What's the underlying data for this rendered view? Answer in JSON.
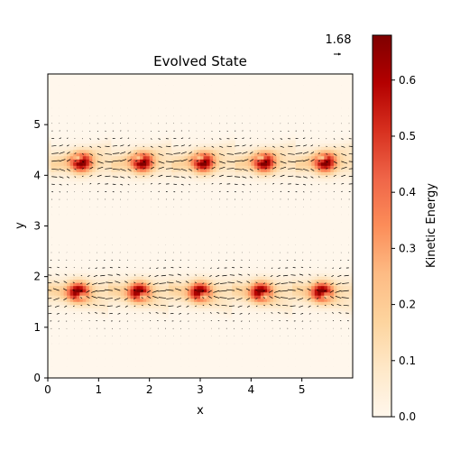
{
  "chart_data": {
    "type": "heatmap",
    "title": "Evolved State",
    "xlabel": "x",
    "ylabel": "y",
    "xlim": [
      0,
      6
    ],
    "ylim": [
      0,
      6
    ],
    "xticks": [
      0,
      1,
      2,
      3,
      4,
      5
    ],
    "yticks": [
      0,
      1,
      2,
      3,
      4,
      5
    ],
    "colorbar": {
      "label": "Kinetic Energy",
      "range": [
        0.0,
        0.68
      ],
      "ticks": [
        "0.0",
        "0.1",
        "0.2",
        "0.3",
        "0.4",
        "0.5",
        "0.6"
      ],
      "colormap": "OrRd",
      "stops": [
        "#fff7ec",
        "#fee8c8",
        "#fdd49e",
        "#fdbb84",
        "#fc8d59",
        "#ef6548",
        "#d7301f",
        "#b30000",
        "#7f0000"
      ]
    },
    "quiver_key": {
      "label": "1.68"
    },
    "field": {
      "periodic_x": 1.2,
      "bands": [
        {
          "y_center": 4.25,
          "flow_dir": 1
        },
        {
          "y_center": 1.7,
          "flow_dir": -1
        }
      ],
      "eddies_per_band": 5,
      "peak_energy": 0.66
    }
  }
}
